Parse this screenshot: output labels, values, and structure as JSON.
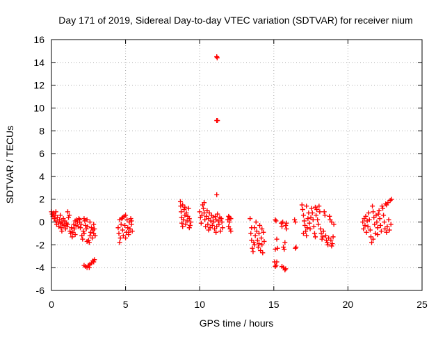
{
  "chart_data": {
    "type": "scatter",
    "title": "Day 171 of 2019, Sidereal Day-to-day VTEC variation (SDTVAR) for receiver nium",
    "xlabel": "GPS time / hours",
    "ylabel": "SDTVAR / TECUs",
    "xlim": [
      0,
      25
    ],
    "ylim": [
      -6,
      16
    ],
    "xticks": [
      0,
      5,
      10,
      15,
      20,
      25
    ],
    "yticks": [
      -6,
      -4,
      -2,
      0,
      2,
      4,
      6,
      8,
      10,
      12,
      14,
      16
    ],
    "grid": true,
    "marker": "+",
    "color": "#ff0000",
    "series": [
      {
        "name": "SDTVAR",
        "points": [
          [
            0.0,
            0.9
          ],
          [
            0.05,
            0.7
          ],
          [
            0.1,
            0.5
          ],
          [
            0.15,
            0.8
          ],
          [
            0.2,
            0.3
          ],
          [
            0.25,
            0.6
          ],
          [
            0.3,
            0.1
          ],
          [
            0.35,
            -0.2
          ],
          [
            0.4,
            0.4
          ],
          [
            0.45,
            0.0
          ],
          [
            0.5,
            -0.4
          ],
          [
            0.55,
            0.2
          ],
          [
            0.6,
            -0.1
          ],
          [
            0.65,
            -0.5
          ],
          [
            0.7,
            0.0
          ],
          [
            0.75,
            -0.2
          ],
          [
            0.8,
            0.3
          ],
          [
            0.85,
            -0.3
          ],
          [
            0.9,
            0.1
          ],
          [
            0.95,
            -0.6
          ],
          [
            1.0,
            -0.1
          ],
          [
            1.05,
            -0.4
          ],
          [
            1.1,
            -0.2
          ],
          [
            1.15,
            0.4
          ],
          [
            1.2,
            0.6
          ],
          [
            1.25,
            -0.8
          ],
          [
            1.3,
            -1.0
          ],
          [
            1.35,
            -0.5
          ],
          [
            1.4,
            -1.3
          ],
          [
            1.45,
            -0.9
          ],
          [
            1.5,
            -0.2
          ],
          [
            1.55,
            -0.6
          ],
          [
            1.6,
            0.1
          ],
          [
            1.65,
            -0.3
          ],
          [
            1.7,
            0.2
          ],
          [
            1.75,
            0.0
          ],
          [
            1.8,
            -0.4
          ],
          [
            1.85,
            0.3
          ],
          [
            1.9,
            0.0
          ],
          [
            1.95,
            -0.5
          ],
          [
            2.0,
            -0.2
          ],
          [
            2.05,
            -1.2
          ],
          [
            2.1,
            -1.5
          ],
          [
            2.15,
            -0.8
          ],
          [
            2.2,
            -1.0
          ],
          [
            2.25,
            0.1
          ],
          [
            2.3,
            -0.3
          ],
          [
            2.35,
            -0.6
          ],
          [
            2.4,
            0.2
          ],
          [
            2.45,
            -0.4
          ],
          [
            2.5,
            -1.6
          ],
          [
            2.55,
            -1.8
          ],
          [
            2.6,
            -1.2
          ],
          [
            2.65,
            -0.9
          ],
          [
            2.7,
            -0.5
          ],
          [
            2.75,
            -1.4
          ],
          [
            2.8,
            -0.7
          ],
          [
            2.85,
            -1.0
          ],
          [
            2.9,
            -0.6
          ],
          [
            2.95,
            -1.2
          ],
          [
            0.3,
            0.9
          ],
          [
            0.6,
            0.6
          ],
          [
            1.1,
            0.9
          ],
          [
            1.9,
            0.2
          ],
          [
            2.2,
            0.3
          ],
          [
            2.6,
            0.0
          ],
          [
            2.85,
            -0.2
          ],
          [
            0.7,
            -0.8
          ],
          [
            1.6,
            -1.1
          ],
          [
            2.4,
            -1.7
          ],
          [
            2.2,
            -3.8
          ],
          [
            2.3,
            -3.9
          ],
          [
            2.4,
            -4.0
          ],
          [
            2.5,
            -3.8
          ],
          [
            2.55,
            -4.0
          ],
          [
            2.6,
            -3.7
          ],
          [
            2.7,
            -3.6
          ],
          [
            2.8,
            -3.4
          ],
          [
            2.85,
            -3.5
          ],
          [
            2.9,
            -3.3
          ],
          [
            4.5,
            -0.5
          ],
          [
            4.55,
            -1.0
          ],
          [
            4.6,
            -1.8
          ],
          [
            4.65,
            -1.4
          ],
          [
            4.7,
            -0.2
          ],
          [
            4.75,
            0.3
          ],
          [
            4.8,
            -0.7
          ],
          [
            4.85,
            -1.2
          ],
          [
            4.9,
            0.5
          ],
          [
            4.95,
            -0.3
          ],
          [
            5.0,
            0.6
          ],
          [
            5.05,
            -0.9
          ],
          [
            5.1,
            0.2
          ],
          [
            5.15,
            -0.5
          ],
          [
            5.2,
            -1.1
          ],
          [
            5.25,
            0.0
          ],
          [
            5.3,
            -0.6
          ],
          [
            5.35,
            0.3
          ],
          [
            5.4,
            -0.2
          ],
          [
            5.45,
            -0.8
          ],
          [
            4.6,
            0.2
          ],
          [
            4.8,
            0.4
          ],
          [
            5.0,
            -1.4
          ],
          [
            5.2,
            -0.9
          ],
          [
            5.4,
            0.1
          ],
          [
            8.7,
            1.8
          ],
          [
            8.72,
            1.4
          ],
          [
            8.75,
            0.9
          ],
          [
            8.78,
            0.4
          ],
          [
            8.8,
            -0.1
          ],
          [
            8.85,
            -0.4
          ],
          [
            8.9,
            0.2
          ],
          [
            8.95,
            1.1
          ],
          [
            9.0,
            0.6
          ],
          [
            9.05,
            -0.2
          ],
          [
            9.1,
            0.8
          ],
          [
            9.15,
            0.1
          ],
          [
            9.2,
            0.5
          ],
          [
            9.25,
            1.2
          ],
          [
            9.3,
            0.3
          ],
          [
            9.35,
            -0.3
          ],
          [
            9.4,
            0.0
          ],
          [
            8.85,
            1.5
          ],
          [
            9.3,
            -0.5
          ],
          [
            9.0,
            1.3
          ],
          [
            10.0,
            0.9
          ],
          [
            10.05,
            0.4
          ],
          [
            10.1,
            -0.1
          ],
          [
            10.15,
            0.6
          ],
          [
            10.2,
            1.5
          ],
          [
            10.25,
            1.2
          ],
          [
            10.3,
            0.8
          ],
          [
            10.35,
            0.2
          ],
          [
            10.4,
            -0.4
          ],
          [
            10.45,
            0.5
          ],
          [
            10.5,
            1.0
          ],
          [
            10.55,
            -0.2
          ],
          [
            10.6,
            0.3
          ],
          [
            10.65,
            0.8
          ],
          [
            10.7,
            -0.5
          ],
          [
            10.75,
            0.1
          ],
          [
            10.8,
            0.6
          ],
          [
            10.85,
            -0.3
          ],
          [
            10.9,
            0.4
          ],
          [
            10.95,
            0.0
          ],
          [
            11.0,
            -0.6
          ],
          [
            11.05,
            0.5
          ],
          [
            11.1,
            0.2
          ],
          [
            11.15,
            -0.4
          ],
          [
            11.2,
            0.7
          ],
          [
            11.25,
            0.1
          ],
          [
            11.3,
            -0.2
          ],
          [
            11.35,
            0.4
          ],
          [
            11.4,
            -0.8
          ],
          [
            11.45,
            0.3
          ],
          [
            11.5,
            0.0
          ],
          [
            11.55,
            -0.5
          ],
          [
            10.3,
            1.7
          ],
          [
            10.6,
            -0.7
          ],
          [
            11.1,
            -0.9
          ],
          [
            11.15,
            14.5
          ],
          [
            11.18,
            14.4
          ],
          [
            11.15,
            8.9
          ],
          [
            11.2,
            8.9
          ],
          [
            11.15,
            2.4
          ],
          [
            11.9,
            0.2
          ],
          [
            11.95,
            -0.4
          ],
          [
            12.0,
            0.4
          ],
          [
            12.05,
            -0.6
          ],
          [
            12.1,
            -0.8
          ],
          [
            12.1,
            0.3
          ],
          [
            12.0,
            0.0
          ],
          [
            11.95,
            0.5
          ],
          [
            13.4,
            0.3
          ],
          [
            13.45,
            -1.0
          ],
          [
            13.5,
            -1.6
          ],
          [
            13.55,
            -2.3
          ],
          [
            13.6,
            -2.6
          ],
          [
            13.65,
            -1.8
          ],
          [
            13.7,
            -0.5
          ],
          [
            13.75,
            -1.2
          ],
          [
            13.8,
            0.0
          ],
          [
            13.85,
            -0.8
          ],
          [
            13.9,
            -1.6
          ],
          [
            13.95,
            -2.2
          ],
          [
            14.0,
            -1.0
          ],
          [
            14.05,
            -0.3
          ],
          [
            14.1,
            -2.5
          ],
          [
            14.15,
            -1.4
          ],
          [
            14.2,
            -2.0
          ],
          [
            14.25,
            -2.7
          ],
          [
            14.3,
            -0.9
          ],
          [
            14.35,
            -1.7
          ],
          [
            13.5,
            -0.5
          ],
          [
            13.7,
            -2.0
          ],
          [
            14.0,
            -1.9
          ],
          [
            14.2,
            -0.6
          ],
          [
            15.1,
            0.2
          ],
          [
            15.15,
            0.1
          ],
          [
            15.2,
            -1.5
          ],
          [
            15.25,
            -2.3
          ],
          [
            15.1,
            -2.4
          ],
          [
            15.05,
            -3.5
          ],
          [
            15.15,
            -3.8
          ],
          [
            15.2,
            -3.5
          ],
          [
            15.1,
            -3.9
          ],
          [
            15.5,
            -0.1
          ],
          [
            15.55,
            -0.4
          ],
          [
            15.6,
            0.0
          ],
          [
            15.65,
            -2.2
          ],
          [
            15.7,
            -2.4
          ],
          [
            15.75,
            -1.8
          ],
          [
            15.8,
            -0.3
          ],
          [
            15.85,
            -0.1
          ],
          [
            15.55,
            -3.9
          ],
          [
            15.65,
            -4.0
          ],
          [
            15.75,
            -4.2
          ],
          [
            15.8,
            -4.1
          ],
          [
            15.85,
            -0.6
          ],
          [
            16.4,
            0.2
          ],
          [
            16.45,
            0.0
          ],
          [
            16.5,
            -2.2
          ],
          [
            16.45,
            -2.3
          ],
          [
            16.9,
            1.5
          ],
          [
            16.95,
            1.1
          ],
          [
            17.0,
            0.6
          ],
          [
            17.05,
            0.1
          ],
          [
            17.1,
            -0.3
          ],
          [
            17.15,
            -0.8
          ],
          [
            17.2,
            -1.2
          ],
          [
            17.25,
            -0.5
          ],
          [
            17.3,
            0.3
          ],
          [
            17.35,
            0.8
          ],
          [
            17.4,
            -0.1
          ],
          [
            17.45,
            -0.6
          ],
          [
            17.5,
            0.4
          ],
          [
            17.55,
            1.2
          ],
          [
            17.6,
            0.8
          ],
          [
            17.65,
            0.2
          ],
          [
            17.7,
            -0.4
          ],
          [
            17.75,
            -1.0
          ],
          [
            17.8,
            -1.3
          ],
          [
            17.85,
            0.6
          ],
          [
            17.9,
            1.1
          ],
          [
            17.95,
            0.2
          ],
          [
            18.0,
            -0.2
          ],
          [
            18.05,
            1.4
          ],
          [
            18.1,
            0.9
          ],
          [
            18.15,
            -0.6
          ],
          [
            18.2,
            -1.0
          ],
          [
            18.25,
            -1.5
          ],
          [
            18.3,
            -1.3
          ],
          [
            18.35,
            -0.8
          ],
          [
            18.4,
            0.9
          ],
          [
            18.45,
            0.6
          ],
          [
            18.5,
            -1.2
          ],
          [
            18.55,
            -1.6
          ],
          [
            18.6,
            -1.8
          ],
          [
            18.65,
            -2.0
          ],
          [
            18.7,
            -1.4
          ],
          [
            18.75,
            0.5
          ],
          [
            18.8,
            0.2
          ],
          [
            18.85,
            -1.6
          ],
          [
            18.9,
            -2.1
          ],
          [
            18.95,
            -1.9
          ],
          [
            19.0,
            -1.3
          ],
          [
            19.05,
            -0.2
          ],
          [
            17.2,
            1.4
          ],
          [
            17.8,
            1.3
          ],
          [
            18.9,
            0.0
          ],
          [
            17.0,
            -1.0
          ],
          [
            21.0,
            0.0
          ],
          [
            21.05,
            -0.6
          ],
          [
            21.1,
            0.3
          ],
          [
            21.15,
            -0.3
          ],
          [
            21.2,
            0.5
          ],
          [
            21.25,
            -0.9
          ],
          [
            21.3,
            0.1
          ],
          [
            21.35,
            -0.4
          ],
          [
            21.4,
            0.8
          ],
          [
            21.45,
            0.2
          ],
          [
            21.5,
            -0.7
          ],
          [
            21.55,
            -1.3
          ],
          [
            21.6,
            -1.8
          ],
          [
            21.65,
            1.4
          ],
          [
            21.7,
            0.9
          ],
          [
            21.75,
            0.4
          ],
          [
            21.8,
            -0.2
          ],
          [
            21.85,
            -1.0
          ],
          [
            21.9,
            0.6
          ],
          [
            21.95,
            0.0
          ],
          [
            22.0,
            -0.5
          ],
          [
            22.05,
            0.7
          ],
          [
            22.1,
            1.0
          ],
          [
            22.15,
            0.3
          ],
          [
            22.2,
            -0.3
          ],
          [
            22.25,
            -0.8
          ],
          [
            22.3,
            1.4
          ],
          [
            22.35,
            1.2
          ],
          [
            22.4,
            0.6
          ],
          [
            22.45,
            0.0
          ],
          [
            22.5,
            -0.6
          ],
          [
            22.55,
            1.6
          ],
          [
            22.6,
            1.5
          ],
          [
            22.65,
            -0.4
          ],
          [
            22.7,
            1.7
          ],
          [
            22.75,
            0.2
          ],
          [
            22.8,
            -0.7
          ],
          [
            22.85,
            1.9
          ],
          [
            22.9,
            -0.2
          ],
          [
            22.95,
            2.0
          ],
          [
            22.0,
            -1.1
          ],
          [
            22.6,
            -0.9
          ],
          [
            21.7,
            -1.5
          ]
        ]
      }
    ]
  }
}
